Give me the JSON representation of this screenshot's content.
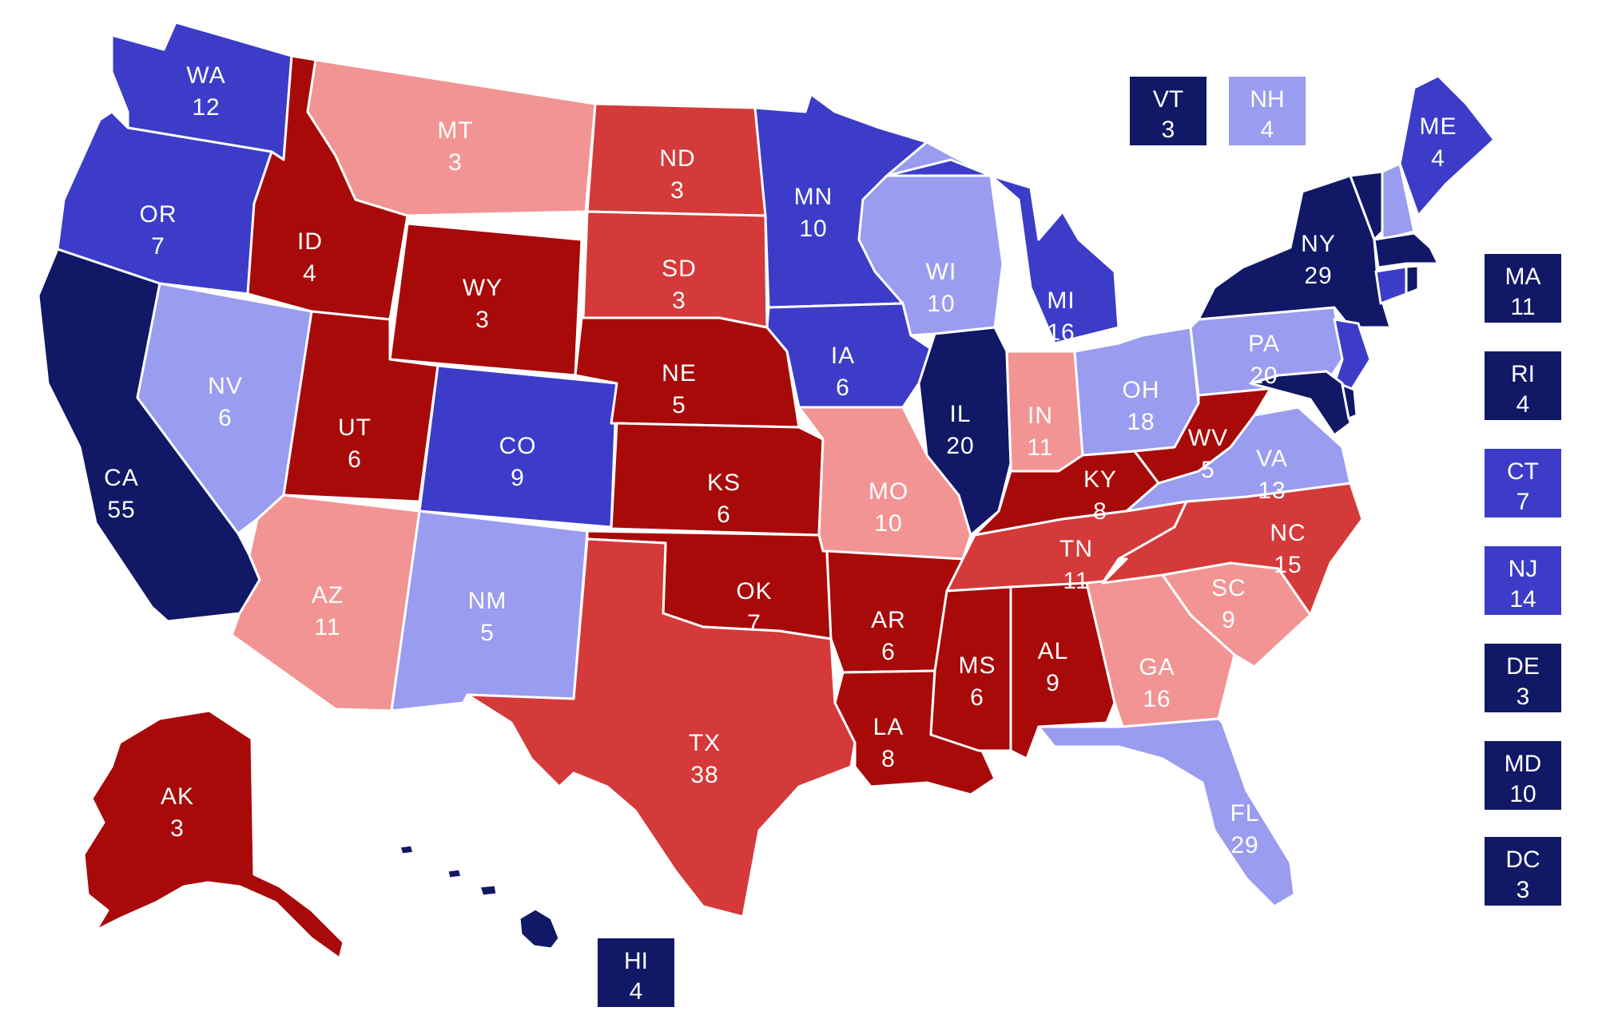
{
  "colors": {
    "safe_dem": "#111866",
    "likely_dem": "#3c3cc8",
    "lean_dem": "#9a9cf0",
    "lean_rep": "#f29494",
    "likely_rep": "#d43a3a",
    "safe_rep": "#a80a0a",
    "border": "#ffffff"
  },
  "states": {
    "WA": {
      "abbr": "WA",
      "ev": "12",
      "rating": "likely_dem"
    },
    "OR": {
      "abbr": "OR",
      "ev": "7",
      "rating": "likely_dem"
    },
    "CA": {
      "abbr": "CA",
      "ev": "55",
      "rating": "safe_dem"
    },
    "NV": {
      "abbr": "NV",
      "ev": "6",
      "rating": "lean_dem"
    },
    "ID": {
      "abbr": "ID",
      "ev": "4",
      "rating": "safe_rep"
    },
    "MT": {
      "abbr": "MT",
      "ev": "3",
      "rating": "lean_rep"
    },
    "WY": {
      "abbr": "WY",
      "ev": "3",
      "rating": "safe_rep"
    },
    "UT": {
      "abbr": "UT",
      "ev": "6",
      "rating": "safe_rep"
    },
    "AZ": {
      "abbr": "AZ",
      "ev": "11",
      "rating": "lean_rep"
    },
    "CO": {
      "abbr": "CO",
      "ev": "9",
      "rating": "likely_dem"
    },
    "NM": {
      "abbr": "NM",
      "ev": "5",
      "rating": "lean_dem"
    },
    "ND": {
      "abbr": "ND",
      "ev": "3",
      "rating": "likely_rep"
    },
    "SD": {
      "abbr": "SD",
      "ev": "3",
      "rating": "likely_rep"
    },
    "NE": {
      "abbr": "NE",
      "ev": "5",
      "rating": "safe_rep"
    },
    "KS": {
      "abbr": "KS",
      "ev": "6",
      "rating": "safe_rep"
    },
    "OK": {
      "abbr": "OK",
      "ev": "7",
      "rating": "safe_rep"
    },
    "TX": {
      "abbr": "TX",
      "ev": "38",
      "rating": "likely_rep"
    },
    "MN": {
      "abbr": "MN",
      "ev": "10",
      "rating": "likely_dem"
    },
    "IA": {
      "abbr": "IA",
      "ev": "6",
      "rating": "likely_dem"
    },
    "MO": {
      "abbr": "MO",
      "ev": "10",
      "rating": "lean_rep"
    },
    "AR": {
      "abbr": "AR",
      "ev": "6",
      "rating": "safe_rep"
    },
    "LA": {
      "abbr": "LA",
      "ev": "8",
      "rating": "safe_rep"
    },
    "WI": {
      "abbr": "WI",
      "ev": "10",
      "rating": "lean_dem"
    },
    "IL": {
      "abbr": "IL",
      "ev": "20",
      "rating": "safe_dem"
    },
    "MI": {
      "abbr": "MI",
      "ev": "16",
      "rating": "likely_dem"
    },
    "IN": {
      "abbr": "IN",
      "ev": "11",
      "rating": "lean_rep"
    },
    "OH": {
      "abbr": "OH",
      "ev": "18",
      "rating": "lean_dem"
    },
    "KY": {
      "abbr": "KY",
      "ev": "8",
      "rating": "safe_rep"
    },
    "TN": {
      "abbr": "TN",
      "ev": "11",
      "rating": "likely_rep"
    },
    "MS": {
      "abbr": "MS",
      "ev": "6",
      "rating": "safe_rep"
    },
    "AL": {
      "abbr": "AL",
      "ev": "9",
      "rating": "safe_rep"
    },
    "GA": {
      "abbr": "GA",
      "ev": "16",
      "rating": "lean_rep"
    },
    "FL": {
      "abbr": "FL",
      "ev": "29",
      "rating": "lean_dem"
    },
    "SC": {
      "abbr": "SC",
      "ev": "9",
      "rating": "lean_rep"
    },
    "NC": {
      "abbr": "NC",
      "ev": "15",
      "rating": "likely_rep"
    },
    "VA": {
      "abbr": "VA",
      "ev": "13",
      "rating": "lean_dem"
    },
    "WV": {
      "abbr": "WV",
      "ev": "5",
      "rating": "safe_rep"
    },
    "PA": {
      "abbr": "PA",
      "ev": "20",
      "rating": "lean_dem"
    },
    "NY": {
      "abbr": "NY",
      "ev": "29",
      "rating": "safe_dem"
    },
    "ME": {
      "abbr": "ME",
      "ev": "4",
      "rating": "likely_dem"
    },
    "AK": {
      "abbr": "AK",
      "ev": "3",
      "rating": "safe_rep"
    },
    "HI": {
      "abbr": "HI",
      "ev": "4",
      "rating": "safe_dem"
    },
    "VT": {
      "abbr": "VT",
      "ev": "3",
      "rating": "safe_dem"
    },
    "NH": {
      "abbr": "NH",
      "ev": "4",
      "rating": "lean_dem"
    },
    "MA": {
      "abbr": "MA",
      "ev": "11",
      "rating": "safe_dem"
    },
    "RI": {
      "abbr": "RI",
      "ev": "4",
      "rating": "safe_dem"
    },
    "CT": {
      "abbr": "CT",
      "ev": "7",
      "rating": "likely_dem"
    },
    "NJ": {
      "abbr": "NJ",
      "ev": "14",
      "rating": "likely_dem"
    },
    "DE": {
      "abbr": "DE",
      "ev": "3",
      "rating": "safe_dem"
    },
    "MD": {
      "abbr": "MD",
      "ev": "10",
      "rating": "safe_dem"
    },
    "DC": {
      "abbr": "DC",
      "ev": "3",
      "rating": "safe_dem"
    }
  }
}
